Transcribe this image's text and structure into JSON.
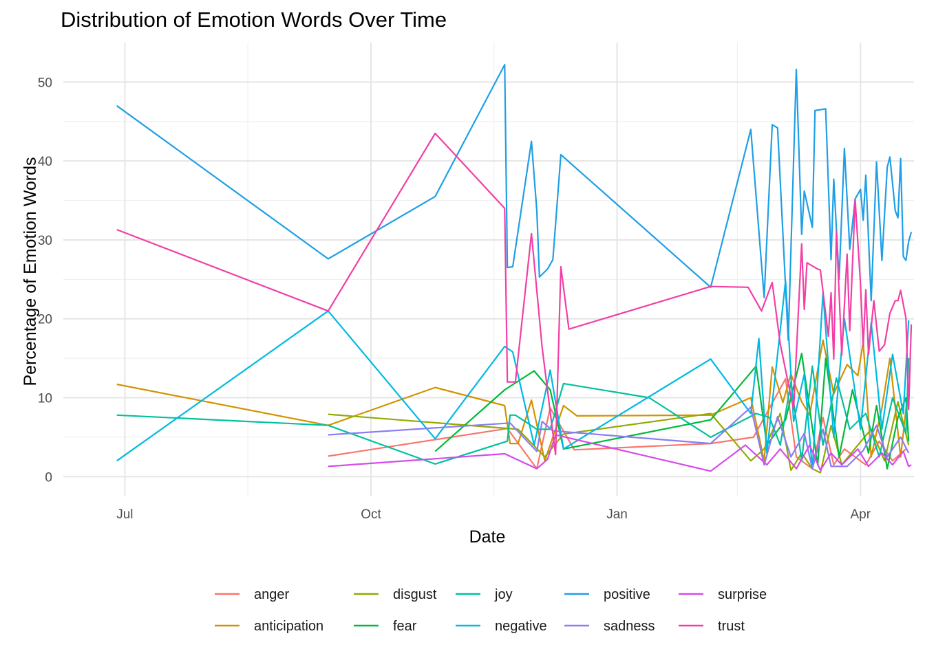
{
  "chart_data": {
    "type": "line",
    "title": "Distribution of Emotion Words Over Time",
    "xlabel": "Date",
    "ylabel": "Percentage of Emotion Words",
    "x_ticks": [
      "Jul",
      "Oct",
      "Jan",
      "Apr"
    ],
    "x_tick_dates": [
      "2023-07-01",
      "2023-10-01",
      "2024-01-01",
      "2024-04-01"
    ],
    "xlim": [
      "2023-06-08",
      "2024-04-21"
    ],
    "y_ticks": [
      0,
      10,
      20,
      30,
      40,
      50
    ],
    "ylim": [
      -2.5,
      55
    ],
    "grid": true,
    "legend_position": "bottom",
    "colors": {
      "anger": "#F8766D",
      "anticipation": "#D39200",
      "disgust": "#93AA00",
      "fear": "#00BA38",
      "joy": "#00C19F",
      "negative": "#00B9E3",
      "positive": "#619CFF",
      "sadness": "#DB72FB",
      "surprise": "#FF61C3",
      "trust": "#FF61C3"
    },
    "series": [
      {
        "name": "anger",
        "color": "#F8766D",
        "points": [
          [
            "2023-09-15",
            2.6
          ],
          [
            "2023-11-21",
            6.1
          ],
          [
            "2023-12-02",
            1.0
          ],
          [
            "2023-12-07",
            8.7
          ],
          [
            "2023-12-16",
            3.4
          ],
          [
            "2024-02-05",
            4.2
          ],
          [
            "2024-02-21",
            5.0
          ],
          [
            "2024-03-04",
            12.4
          ],
          [
            "2024-03-08",
            2.5
          ],
          [
            "2024-03-14",
            1.0
          ],
          [
            "2024-03-18",
            7.5
          ],
          [
            "2024-03-22",
            1.5
          ],
          [
            "2024-03-26",
            3.5
          ],
          [
            "2024-04-03",
            1.5
          ],
          [
            "2024-04-08",
            4.5
          ],
          [
            "2024-04-13",
            2.0
          ],
          [
            "2024-04-18",
            3.5
          ]
        ]
      },
      {
        "name": "anticipation",
        "color": "#D39200",
        "points": [
          [
            "2023-06-28",
            11.7
          ],
          [
            "2023-09-15",
            6.5
          ],
          [
            "2023-10-25",
            11.3
          ],
          [
            "2023-11-20",
            9.0
          ],
          [
            "2023-11-22",
            4.2
          ],
          [
            "2023-11-25",
            4.2
          ],
          [
            "2023-11-30",
            9.7
          ],
          [
            "2023-12-05",
            2.0
          ],
          [
            "2023-12-12",
            9.0
          ],
          [
            "2023-12-17",
            7.7
          ],
          [
            "2024-02-05",
            7.8
          ],
          [
            "2024-02-20",
            10.0
          ],
          [
            "2024-02-25",
            2.0
          ],
          [
            "2024-02-28",
            13.9
          ],
          [
            "2024-03-03",
            9.4
          ],
          [
            "2024-03-06",
            13.0
          ],
          [
            "2024-03-10",
            9.5
          ],
          [
            "2024-03-13",
            7.8
          ],
          [
            "2024-03-18",
            17.3
          ],
          [
            "2024-03-22",
            10.5
          ],
          [
            "2024-03-27",
            14.2
          ],
          [
            "2024-03-31",
            12.8
          ],
          [
            "2024-04-02",
            17.0
          ],
          [
            "2024-04-05",
            2.5
          ],
          [
            "2024-04-09",
            8.7
          ],
          [
            "2024-04-12",
            15.0
          ],
          [
            "2024-04-16",
            2.5
          ],
          [
            "2024-04-19",
            11.6
          ]
        ]
      },
      {
        "name": "disgust",
        "color": "#93AA00",
        "points": [
          [
            "2023-09-15",
            7.9
          ],
          [
            "2023-11-25",
            6.0
          ],
          [
            "2023-12-05",
            2.5
          ],
          [
            "2023-12-12",
            5.4
          ],
          [
            "2024-02-05",
            8.0
          ],
          [
            "2024-02-20",
            2.0
          ],
          [
            "2024-02-25",
            3.5
          ],
          [
            "2024-03-02",
            8.0
          ],
          [
            "2024-03-06",
            0.8
          ],
          [
            "2024-03-10",
            3.0
          ],
          [
            "2024-03-14",
            1.0
          ],
          [
            "2024-03-17",
            0.5
          ],
          [
            "2024-03-21",
            6.5
          ],
          [
            "2024-03-25",
            1.5
          ],
          [
            "2024-03-31",
            4.0
          ],
          [
            "2024-04-05",
            6.0
          ],
          [
            "2024-04-10",
            2.0
          ],
          [
            "2024-04-15",
            9.5
          ],
          [
            "2024-04-19",
            4.0
          ]
        ]
      },
      {
        "name": "fear",
        "color": "#00BA38",
        "points": [
          [
            "2023-10-25",
            3.2
          ],
          [
            "2023-11-20",
            11.0
          ],
          [
            "2023-12-01",
            13.4
          ],
          [
            "2023-12-07",
            11.0
          ],
          [
            "2023-12-12",
            3.5
          ],
          [
            "2024-02-05",
            7.2
          ],
          [
            "2024-02-22",
            14.0
          ],
          [
            "2024-02-26",
            4.0
          ],
          [
            "2024-03-04",
            7.2
          ],
          [
            "2024-03-10",
            15.6
          ],
          [
            "2024-03-16",
            1.5
          ],
          [
            "2024-03-19",
            15.0
          ],
          [
            "2024-03-24",
            2.5
          ],
          [
            "2024-03-29",
            11.0
          ],
          [
            "2024-04-04",
            3.0
          ],
          [
            "2024-04-07",
            9.0
          ],
          [
            "2024-04-11",
            1.0
          ],
          [
            "2024-04-15",
            7.5
          ],
          [
            "2024-04-18",
            10.0
          ],
          [
            "2024-04-19",
            4.5
          ]
        ]
      },
      {
        "name": "joy",
        "color": "#00C19F",
        "points": [
          [
            "2023-06-28",
            7.8
          ],
          [
            "2023-09-15",
            6.5
          ],
          [
            "2023-10-25",
            1.6
          ],
          [
            "2023-11-21",
            4.5
          ],
          [
            "2023-11-22",
            7.8
          ],
          [
            "2023-11-24",
            7.8
          ],
          [
            "2023-12-02",
            6.0
          ],
          [
            "2023-12-07",
            6.0
          ],
          [
            "2023-12-12",
            11.8
          ],
          [
            "2024-01-13",
            10.0
          ],
          [
            "2024-02-05",
            5.0
          ],
          [
            "2024-02-22",
            8.0
          ],
          [
            "2024-02-27",
            7.5
          ],
          [
            "2024-03-02",
            4.0
          ],
          [
            "2024-03-06",
            12.0
          ],
          [
            "2024-03-10",
            2.0
          ],
          [
            "2024-03-14",
            14.0
          ],
          [
            "2024-03-18",
            4.0
          ],
          [
            "2024-03-23",
            12.5
          ],
          [
            "2024-03-28",
            6.0
          ],
          [
            "2024-04-03",
            8.0
          ],
          [
            "2024-04-08",
            2.5
          ],
          [
            "2024-04-13",
            10.0
          ],
          [
            "2024-04-18",
            5.5
          ],
          [
            "2024-04-19",
            15.0
          ]
        ]
      },
      {
        "name": "negative",
        "color": "#00B9E3",
        "points": [
          [
            "2023-06-28",
            2.0
          ],
          [
            "2023-09-15",
            21.0
          ],
          [
            "2023-10-25",
            4.8
          ],
          [
            "2023-11-20",
            16.5
          ],
          [
            "2023-11-23",
            15.8
          ],
          [
            "2023-12-01",
            4.0
          ],
          [
            "2023-12-07",
            13.5
          ],
          [
            "2023-12-12",
            3.5
          ],
          [
            "2024-02-05",
            14.9
          ],
          [
            "2024-02-20",
            8.0
          ],
          [
            "2024-02-23",
            17.5
          ],
          [
            "2024-02-26",
            3.0
          ],
          [
            "2024-03-04",
            24.8
          ],
          [
            "2024-03-07",
            7.0
          ],
          [
            "2024-03-11",
            13.0
          ],
          [
            "2024-03-14",
            1.0
          ],
          [
            "2024-03-18",
            23.3
          ],
          [
            "2024-03-22",
            5.0
          ],
          [
            "2024-03-26",
            20.0
          ],
          [
            "2024-04-01",
            6.0
          ],
          [
            "2024-04-05",
            19.5
          ],
          [
            "2024-04-09",
            6.0
          ],
          [
            "2024-04-13",
            15.5
          ],
          [
            "2024-04-17",
            8.0
          ],
          [
            "2024-04-19",
            19.8
          ]
        ]
      },
      {
        "name": "positive",
        "color": "#1F9FE5",
        "points": [
          [
            "2023-06-28",
            47.0
          ],
          [
            "2023-09-15",
            27.6
          ],
          [
            "2023-10-25",
            35.5
          ],
          [
            "2023-11-20",
            52.2
          ],
          [
            "2023-11-21",
            26.5
          ],
          [
            "2023-11-23",
            26.6
          ],
          [
            "2023-11-30",
            42.5
          ],
          [
            "2023-12-02",
            33.7
          ],
          [
            "2023-12-03",
            25.3
          ],
          [
            "2023-12-06",
            26.3
          ],
          [
            "2023-12-08",
            27.5
          ],
          [
            "2023-12-11",
            40.8
          ],
          [
            "2024-02-05",
            24.0
          ],
          [
            "2024-02-20",
            44.0
          ],
          [
            "2024-02-25",
            22.7
          ],
          [
            "2024-02-28",
            44.6
          ],
          [
            "2024-03-01",
            44.2
          ],
          [
            "2024-03-05",
            17.3
          ],
          [
            "2024-03-08",
            51.6
          ],
          [
            "2024-03-10",
            30.7
          ],
          [
            "2024-03-11",
            36.2
          ],
          [
            "2024-03-14",
            31.6
          ],
          [
            "2024-03-15",
            46.4
          ],
          [
            "2024-03-19",
            46.6
          ],
          [
            "2024-03-21",
            27.5
          ],
          [
            "2024-03-22",
            37.7
          ],
          [
            "2024-03-24",
            25.0
          ],
          [
            "2024-03-26",
            41.6
          ],
          [
            "2024-03-28",
            28.8
          ],
          [
            "2024-03-30",
            35.2
          ],
          [
            "2024-04-01",
            36.4
          ],
          [
            "2024-04-02",
            32.5
          ],
          [
            "2024-04-03",
            38.2
          ],
          [
            "2024-04-05",
            22.3
          ],
          [
            "2024-04-07",
            39.9
          ],
          [
            "2024-04-09",
            27.4
          ],
          [
            "2024-04-11",
            39.2
          ],
          [
            "2024-04-12",
            40.5
          ],
          [
            "2024-04-14",
            33.7
          ],
          [
            "2024-04-15",
            32.8
          ],
          [
            "2024-04-16",
            40.3
          ],
          [
            "2024-04-17",
            27.9
          ],
          [
            "2024-04-18",
            27.4
          ],
          [
            "2024-04-19",
            29.8
          ],
          [
            "2024-04-20",
            31.0
          ]
        ]
      },
      {
        "name": "sadness",
        "color": "#8B7CF4",
        "points": [
          [
            "2023-09-15",
            5.3
          ],
          [
            "2023-11-22",
            6.8
          ],
          [
            "2023-12-02",
            3.2
          ],
          [
            "2023-12-04",
            7.0
          ],
          [
            "2023-12-08",
            5.8
          ],
          [
            "2024-02-05",
            4.2
          ],
          [
            "2024-02-20",
            8.8
          ],
          [
            "2024-02-25",
            1.5
          ],
          [
            "2024-03-01",
            7.6
          ],
          [
            "2024-03-06",
            2.5
          ],
          [
            "2024-03-11",
            5.5
          ],
          [
            "2024-03-14",
            1.0
          ],
          [
            "2024-03-18",
            6.0
          ],
          [
            "2024-03-21",
            1.3
          ],
          [
            "2024-03-27",
            1.3
          ],
          [
            "2024-04-02",
            3.3
          ],
          [
            "2024-04-07",
            6.5
          ],
          [
            "2024-04-11",
            2.5
          ],
          [
            "2024-04-16",
            5.0
          ],
          [
            "2024-04-19",
            3.0
          ]
        ]
      },
      {
        "name": "surprise",
        "color": "#D54BEA",
        "points": [
          [
            "2023-09-15",
            1.3
          ],
          [
            "2023-11-20",
            2.9
          ],
          [
            "2023-12-02",
            1.0
          ],
          [
            "2023-12-06",
            2.2
          ],
          [
            "2023-12-09",
            5.3
          ],
          [
            "2024-02-05",
            0.7
          ],
          [
            "2024-02-18",
            4.0
          ],
          [
            "2024-02-26",
            1.5
          ],
          [
            "2024-03-02",
            3.5
          ],
          [
            "2024-03-08",
            1.0
          ],
          [
            "2024-03-13",
            4.0
          ],
          [
            "2024-03-17",
            0.8
          ],
          [
            "2024-03-21",
            3.0
          ],
          [
            "2024-03-25",
            1.5
          ],
          [
            "2024-03-31",
            3.5
          ],
          [
            "2024-04-04",
            1.3
          ],
          [
            "2024-04-09",
            3.0
          ],
          [
            "2024-04-13",
            1.5
          ],
          [
            "2024-04-17",
            3.2
          ],
          [
            "2024-04-19",
            1.3
          ],
          [
            "2024-04-20",
            1.5
          ]
        ]
      },
      {
        "name": "trust",
        "color": "#F23FA5",
        "points": [
          [
            "2023-06-28",
            31.3
          ],
          [
            "2023-09-15",
            21.0
          ],
          [
            "2023-10-25",
            43.5
          ],
          [
            "2023-11-20",
            34.0
          ],
          [
            "2023-11-21",
            12.0
          ],
          [
            "2023-11-24",
            12.0
          ],
          [
            "2023-11-30",
            30.8
          ],
          [
            "2023-12-04",
            16.4
          ],
          [
            "2023-12-09",
            2.8
          ],
          [
            "2023-12-11",
            26.6
          ],
          [
            "2023-12-14",
            18.7
          ],
          [
            "2024-02-05",
            24.1
          ],
          [
            "2024-02-19",
            24.0
          ],
          [
            "2024-02-24",
            21.0
          ],
          [
            "2024-02-28",
            24.6
          ],
          [
            "2024-03-02",
            16.8
          ],
          [
            "2024-03-07",
            8.5
          ],
          [
            "2024-03-10",
            29.5
          ],
          [
            "2024-03-11",
            21.2
          ],
          [
            "2024-03-12",
            27.1
          ],
          [
            "2024-03-16",
            26.3
          ],
          [
            "2024-03-17",
            26.2
          ],
          [
            "2024-03-20",
            17.8
          ],
          [
            "2024-03-21",
            23.3
          ],
          [
            "2024-03-22",
            14.9
          ],
          [
            "2024-03-23",
            31.1
          ],
          [
            "2024-03-25",
            15.4
          ],
          [
            "2024-03-27",
            28.2
          ],
          [
            "2024-03-28",
            18.5
          ],
          [
            "2024-03-30",
            35.1
          ],
          [
            "2024-04-01",
            24.4
          ],
          [
            "2024-04-02",
            16.5
          ],
          [
            "2024-04-03",
            23.7
          ],
          [
            "2024-04-04",
            15.5
          ],
          [
            "2024-04-06",
            22.3
          ],
          [
            "2024-04-08",
            15.9
          ],
          [
            "2024-04-10",
            16.7
          ],
          [
            "2024-04-12",
            20.7
          ],
          [
            "2024-04-14",
            22.3
          ],
          [
            "2024-04-15",
            22.3
          ],
          [
            "2024-04-16",
            23.6
          ],
          [
            "2024-04-18",
            20.1
          ],
          [
            "2024-04-19",
            8.5
          ],
          [
            "2024-04-20",
            19.3
          ]
        ]
      }
    ],
    "legend": [
      [
        "anger",
        "disgust",
        "joy",
        "positive",
        "surprise"
      ],
      [
        "anticipation",
        "fear",
        "negative",
        "sadness",
        "trust"
      ]
    ]
  }
}
